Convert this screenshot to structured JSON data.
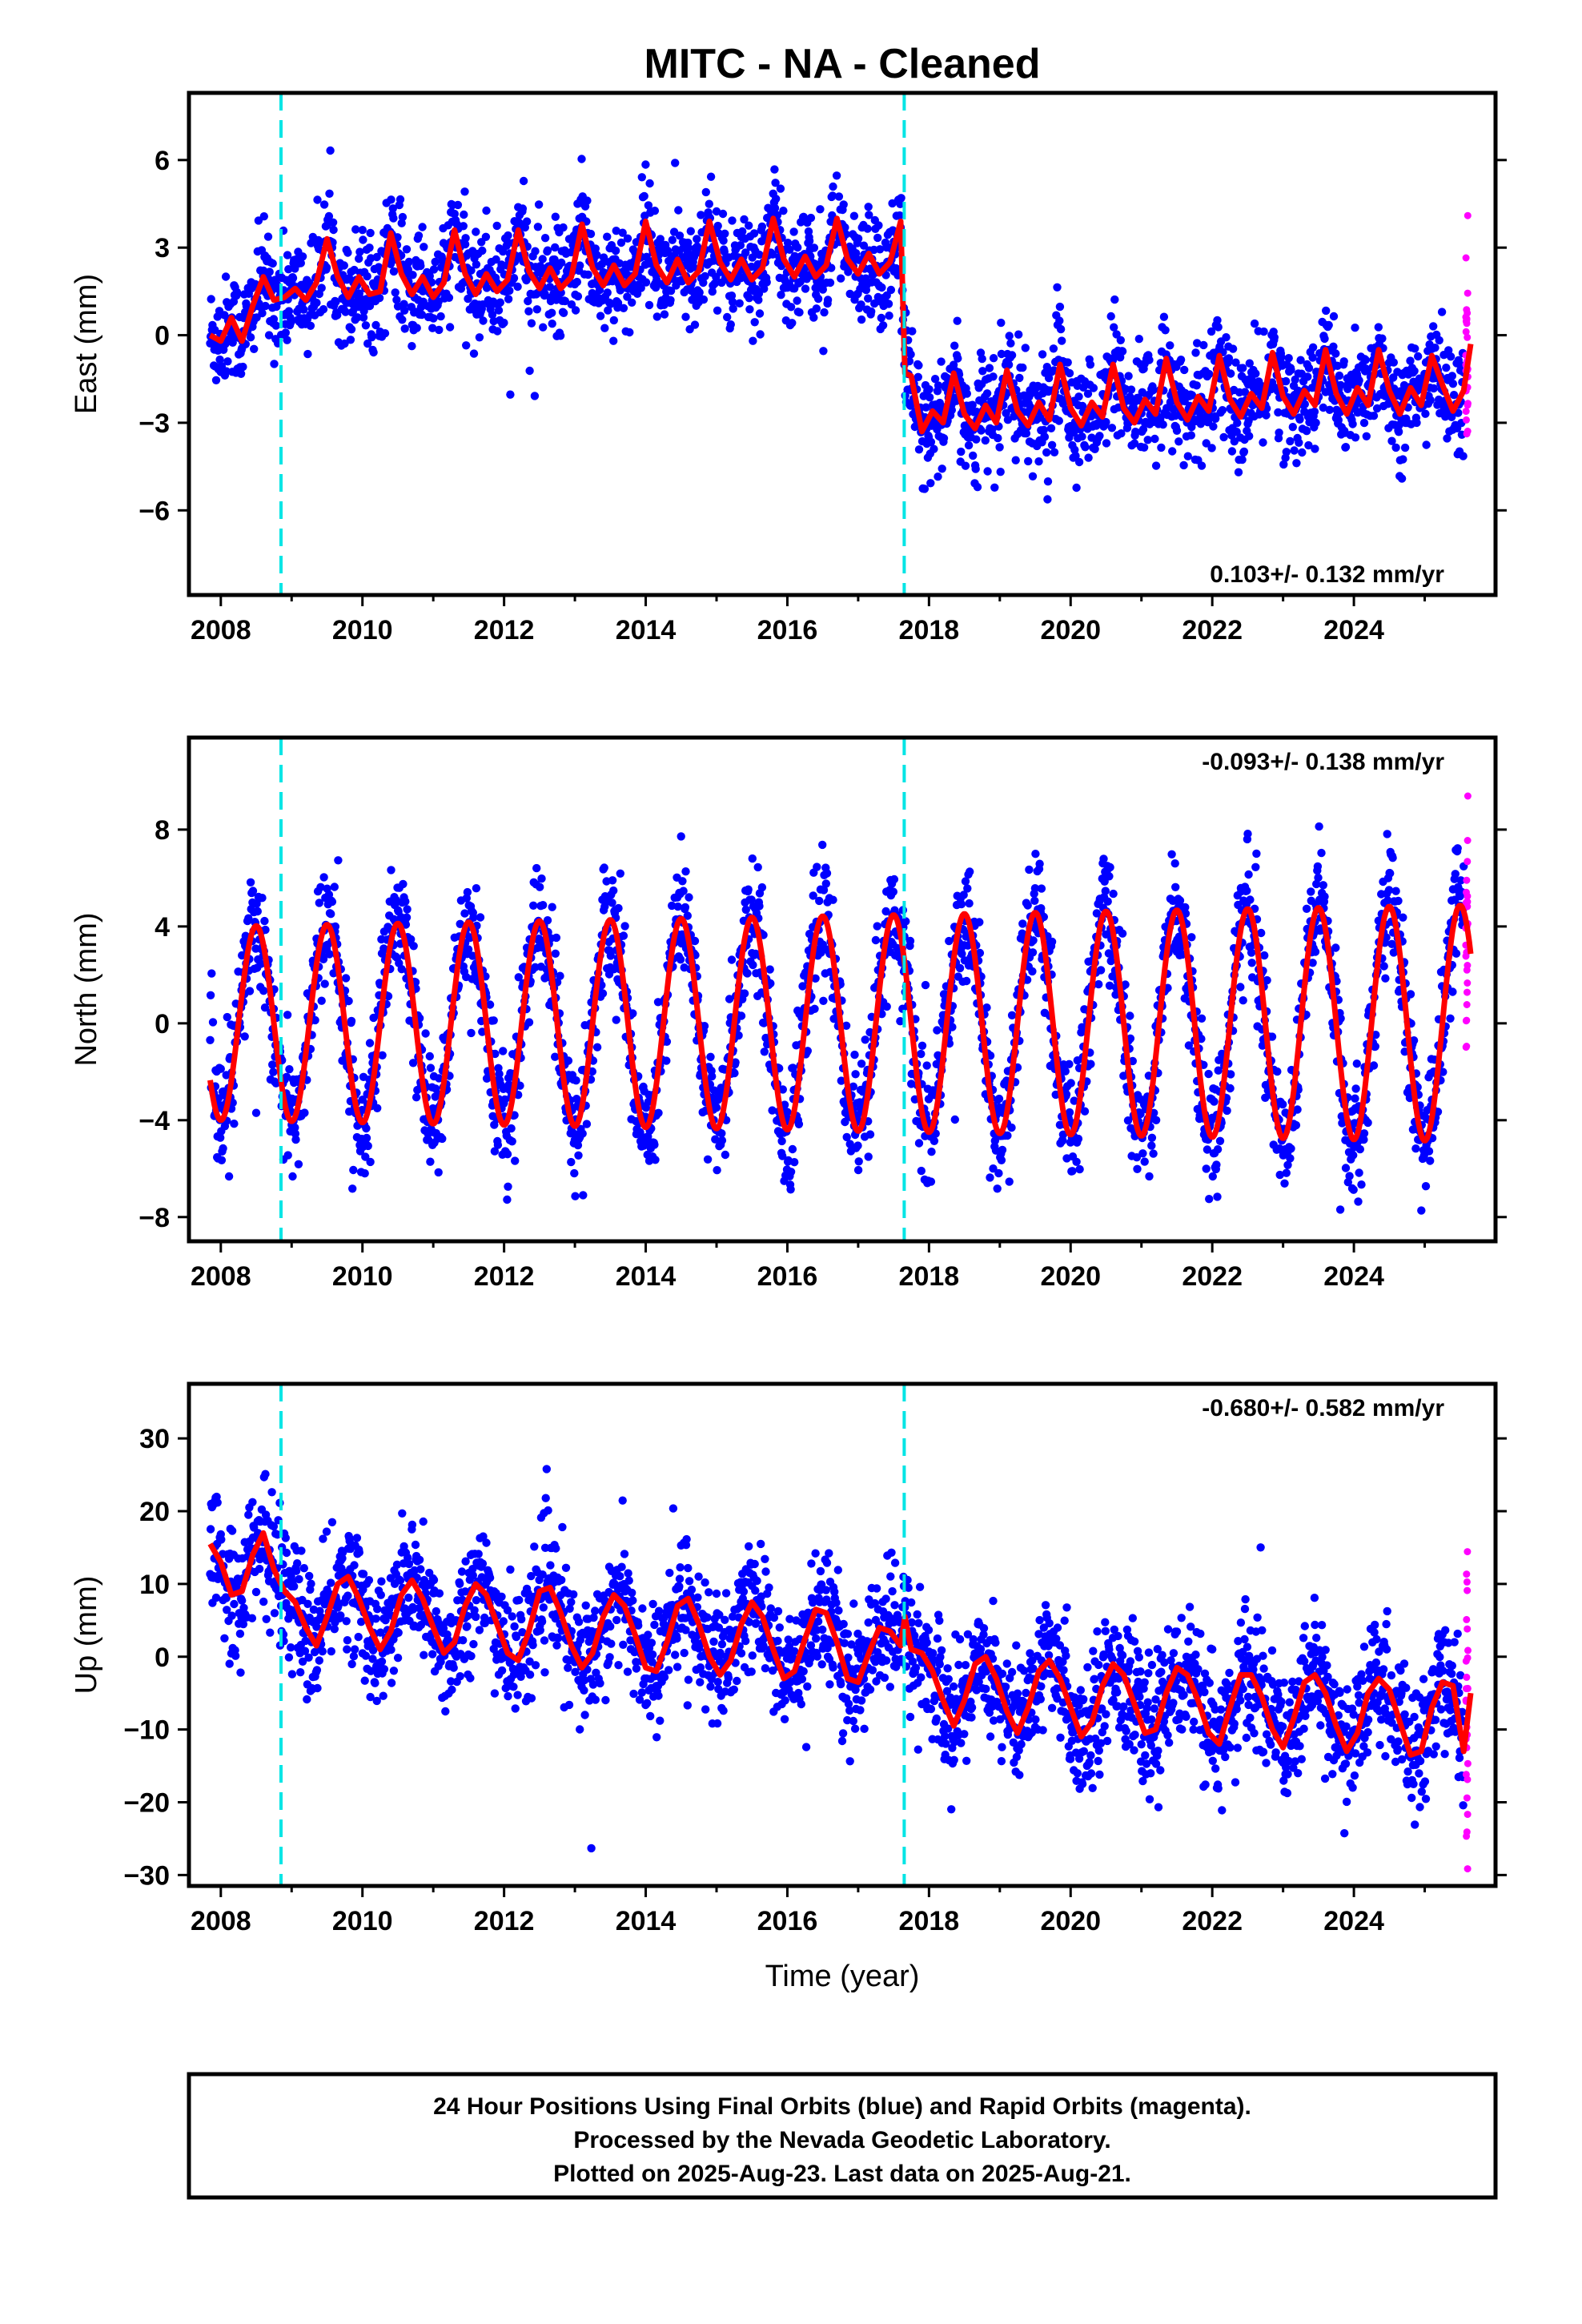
{
  "title": "MITC  - NA - Cleaned",
  "colors": {
    "final_orbits": "#0000ff",
    "rapid_orbits": "#ff00ff",
    "model_fit": "#ff0000",
    "offset_lines": "#00e5e5"
  },
  "footer": {
    "line1": "24 Hour Positions Using Final Orbits (blue) and Rapid Orbits (magenta).",
    "line2": "Processed by the Nevada Geodetic Laboratory.",
    "line3": "Plotted on 2025-Aug-23. Last data on 2025-Aug-21."
  },
  "chart_data": [
    {
      "type": "scatter",
      "ylabel": "East (mm)",
      "xlabel": "",
      "xlim": [
        2007.55,
        2026.0
      ],
      "ylim": [
        -8.9,
        8.3
      ],
      "xticks": [
        "2008",
        "2010",
        "2012",
        "2014",
        "2016",
        "2018",
        "2020",
        "2022",
        "2024"
      ],
      "yticks": [
        "6",
        "3",
        "0",
        "−3",
        "−6"
      ],
      "ytick_values": [
        6,
        3,
        0,
        -3,
        -6
      ],
      "rate_text": "0.103+/- 0.132 mm/yr",
      "rate_position": "bottom-right",
      "offset_epochs": [
        2008.85,
        2017.65
      ],
      "series": [
        {
          "role": "model_fit",
          "x": [
            2007.85,
            2008.0,
            2008.15,
            2008.3,
            2008.45,
            2008.6,
            2008.75,
            2008.9,
            2009.05,
            2009.2,
            2009.35,
            2009.5,
            2009.65,
            2009.8,
            2009.95,
            2010.1,
            2010.25,
            2010.4,
            2010.55,
            2010.7,
            2010.85,
            2011.0,
            2011.15,
            2011.3,
            2011.45,
            2011.6,
            2011.75,
            2011.9,
            2012.05,
            2012.2,
            2012.35,
            2012.5,
            2012.65,
            2012.8,
            2012.95,
            2013.1,
            2013.25,
            2013.4,
            2013.55,
            2013.7,
            2013.85,
            2014.0,
            2014.15,
            2014.3,
            2014.45,
            2014.6,
            2014.75,
            2014.9,
            2015.05,
            2015.2,
            2015.35,
            2015.5,
            2015.65,
            2015.8,
            2015.95,
            2016.1,
            2016.25,
            2016.4,
            2016.55,
            2016.7,
            2016.85,
            2017.0,
            2017.15,
            2017.3,
            2017.45,
            2017.6,
            2017.66,
            2017.75,
            2017.9,
            2018.05,
            2018.2,
            2018.35,
            2018.5,
            2018.65,
            2018.8,
            2018.95,
            2019.1,
            2019.25,
            2019.4,
            2019.55,
            2019.7,
            2019.85,
            2020.0,
            2020.15,
            2020.3,
            2020.45,
            2020.6,
            2020.75,
            2020.9,
            2021.05,
            2021.2,
            2021.35,
            2021.5,
            2021.65,
            2021.8,
            2021.95,
            2022.1,
            2022.25,
            2022.4,
            2022.55,
            2022.7,
            2022.85,
            2023.0,
            2023.15,
            2023.3,
            2023.45,
            2023.6,
            2023.75,
            2023.9,
            2024.05,
            2024.2,
            2024.35,
            2024.5,
            2024.65,
            2024.8,
            2024.95,
            2025.1,
            2025.25,
            2025.4,
            2025.55,
            2025.65
          ],
          "y": [
            0.0,
            -0.2,
            0.6,
            -0.2,
            1.0,
            2.0,
            1.2,
            1.3,
            1.6,
            1.2,
            1.8,
            3.3,
            2.0,
            1.3,
            2.0,
            1.4,
            1.5,
            3.5,
            2.1,
            1.4,
            2.0,
            1.3,
            1.8,
            3.6,
            2.1,
            1.4,
            2.1,
            1.5,
            1.9,
            3.6,
            2.2,
            1.6,
            2.3,
            1.6,
            2.0,
            3.8,
            2.3,
            1.7,
            2.4,
            1.7,
            2.1,
            3.9,
            2.4,
            1.8,
            2.6,
            1.8,
            2.2,
            3.9,
            2.5,
            1.9,
            2.6,
            1.9,
            2.3,
            4.0,
            2.6,
            2.0,
            2.7,
            2.0,
            2.4,
            4.0,
            2.6,
            2.1,
            2.8,
            2.1,
            2.5,
            3.9,
            -1.3,
            -1.4,
            -3.3,
            -2.6,
            -3.0,
            -1.3,
            -2.7,
            -3.2,
            -2.4,
            -3.0,
            -1.2,
            -2.6,
            -3.1,
            -2.3,
            -2.9,
            -1.0,
            -2.5,
            -3.1,
            -2.3,
            -2.8,
            -1.0,
            -2.5,
            -3.0,
            -2.2,
            -2.7,
            -0.8,
            -2.3,
            -2.9,
            -2.1,
            -2.6,
            -0.7,
            -2.2,
            -2.8,
            -2.0,
            -2.5,
            -0.6,
            -2.1,
            -2.7,
            -1.9,
            -2.4,
            -0.5,
            -2.0,
            -2.7,
            -1.8,
            -2.4,
            -0.5,
            -1.9,
            -2.7,
            -1.8,
            -2.4,
            -0.7,
            -1.7,
            -2.6,
            -1.9,
            -0.3
          ],
          "name": ""
        }
      ]
    },
    {
      "type": "scatter",
      "ylabel": "North (mm)",
      "xlabel": "",
      "xlim": [
        2007.55,
        2026.0
      ],
      "ylim": [
        -9.0,
        11.8
      ],
      "xticks": [
        "2008",
        "2010",
        "2012",
        "2014",
        "2016",
        "2018",
        "2020",
        "2022",
        "2024"
      ],
      "yticks": [
        "8",
        "4",
        "0",
        "−4",
        "−8"
      ],
      "ytick_values": [
        8,
        4,
        0,
        -4,
        -8
      ],
      "rate_text": "-0.093+/- 0.138 mm/yr",
      "rate_position": "top-right",
      "offset_epochs": [
        2008.85,
        2017.65
      ],
      "series": [
        {
          "role": "model_fit",
          "annual_amplitude": 4.0,
          "annual_peak_phase": 0.5,
          "amplitude_growth_per_year": 0.05,
          "x_range": [
            2007.85,
            2025.65
          ]
        }
      ]
    },
    {
      "type": "scatter",
      "ylabel": "Up (mm)",
      "xlabel": "Time (year)",
      "xlim": [
        2007.55,
        2026.0
      ],
      "ylim": [
        -31.5,
        37.5
      ],
      "xticks": [
        "2008",
        "2010",
        "2012",
        "2014",
        "2016",
        "2018",
        "2020",
        "2022",
        "2024"
      ],
      "yticks": [
        "30",
        "20",
        "10",
        "0",
        "−10",
        "−20",
        "−30"
      ],
      "ytick_values": [
        30,
        20,
        10,
        0,
        -10,
        -20,
        -30
      ],
      "rate_text": "-0.680+/- 0.582 mm/yr",
      "rate_position": "top-right",
      "offset_epochs": [
        2008.85,
        2017.65
      ],
      "series": [
        {
          "role": "model_fit",
          "x": [
            2007.85,
            2008.0,
            2008.15,
            2008.3,
            2008.45,
            2008.6,
            2008.75,
            2008.9,
            2009.05,
            2009.2,
            2009.35,
            2009.5,
            2009.65,
            2009.8,
            2009.95,
            2010.1,
            2010.25,
            2010.4,
            2010.55,
            2010.7,
            2010.85,
            2011.0,
            2011.15,
            2011.3,
            2011.45,
            2011.6,
            2011.75,
            2011.9,
            2012.05,
            2012.2,
            2012.35,
            2012.5,
            2012.65,
            2012.8,
            2012.95,
            2013.1,
            2013.25,
            2013.4,
            2013.55,
            2013.7,
            2013.85,
            2014.0,
            2014.15,
            2014.3,
            2014.45,
            2014.6,
            2014.75,
            2014.9,
            2015.05,
            2015.2,
            2015.35,
            2015.5,
            2015.65,
            2015.8,
            2015.95,
            2016.1,
            2016.25,
            2016.4,
            2016.55,
            2016.7,
            2016.85,
            2017.0,
            2017.15,
            2017.3,
            2017.45,
            2017.6,
            2017.66,
            2017.75,
            2017.9,
            2018.05,
            2018.2,
            2018.35,
            2018.5,
            2018.65,
            2018.8,
            2018.95,
            2019.1,
            2019.25,
            2019.4,
            2019.55,
            2019.7,
            2019.85,
            2020.0,
            2020.15,
            2020.3,
            2020.45,
            2020.6,
            2020.75,
            2020.9,
            2021.05,
            2021.2,
            2021.35,
            2021.5,
            2021.65,
            2021.8,
            2021.95,
            2022.1,
            2022.25,
            2022.4,
            2022.55,
            2022.7,
            2022.85,
            2023.0,
            2023.15,
            2023.3,
            2023.45,
            2023.6,
            2023.75,
            2023.9,
            2024.05,
            2024.2,
            2024.35,
            2024.5,
            2024.65,
            2024.8,
            2024.95,
            2025.1,
            2025.25,
            2025.4,
            2025.55,
            2025.65
          ],
          "y": [
            15.5,
            13.0,
            8.5,
            9.0,
            14.0,
            17.0,
            12.0,
            9.0,
            7.5,
            4.0,
            1.5,
            5.5,
            10.0,
            11.0,
            8.0,
            4.0,
            1.0,
            3.5,
            8.5,
            10.5,
            8.0,
            4.0,
            0.5,
            2.0,
            7.0,
            10.0,
            8.5,
            4.5,
            0.5,
            -0.5,
            3.5,
            9.0,
            9.5,
            6.0,
            1.5,
            -1.5,
            0.5,
            5.5,
            8.5,
            7.0,
            3.0,
            -1.5,
            -2.0,
            2.0,
            7.0,
            8.0,
            4.5,
            0.0,
            -2.5,
            -0.5,
            4.5,
            7.5,
            5.5,
            1.0,
            -3.0,
            -2.0,
            2.5,
            6.5,
            6.0,
            2.0,
            -3.0,
            -3.5,
            0.5,
            4.0,
            3.5,
            1.5,
            5.5,
            1.0,
            0.5,
            -2.0,
            -6.0,
            -9.5,
            -6.0,
            -1.0,
            0.0,
            -3.0,
            -7.5,
            -10.5,
            -7.0,
            -2.0,
            -0.5,
            -3.0,
            -7.0,
            -11.0,
            -9.0,
            -4.0,
            -1.0,
            -2.5,
            -6.5,
            -10.5,
            -10.0,
            -5.0,
            -1.5,
            -2.5,
            -6.0,
            -10.5,
            -12.0,
            -7.0,
            -2.5,
            -2.5,
            -5.5,
            -10.0,
            -12.5,
            -8.5,
            -3.5,
            -2.5,
            -5.0,
            -9.5,
            -13.0,
            -10.5,
            -5.0,
            -3.0,
            -4.5,
            -9.0,
            -13.5,
            -13.0,
            -7.0,
            -3.5,
            -4.0,
            -13.0,
            -5.0
          ],
          "name": ""
        }
      ]
    }
  ]
}
